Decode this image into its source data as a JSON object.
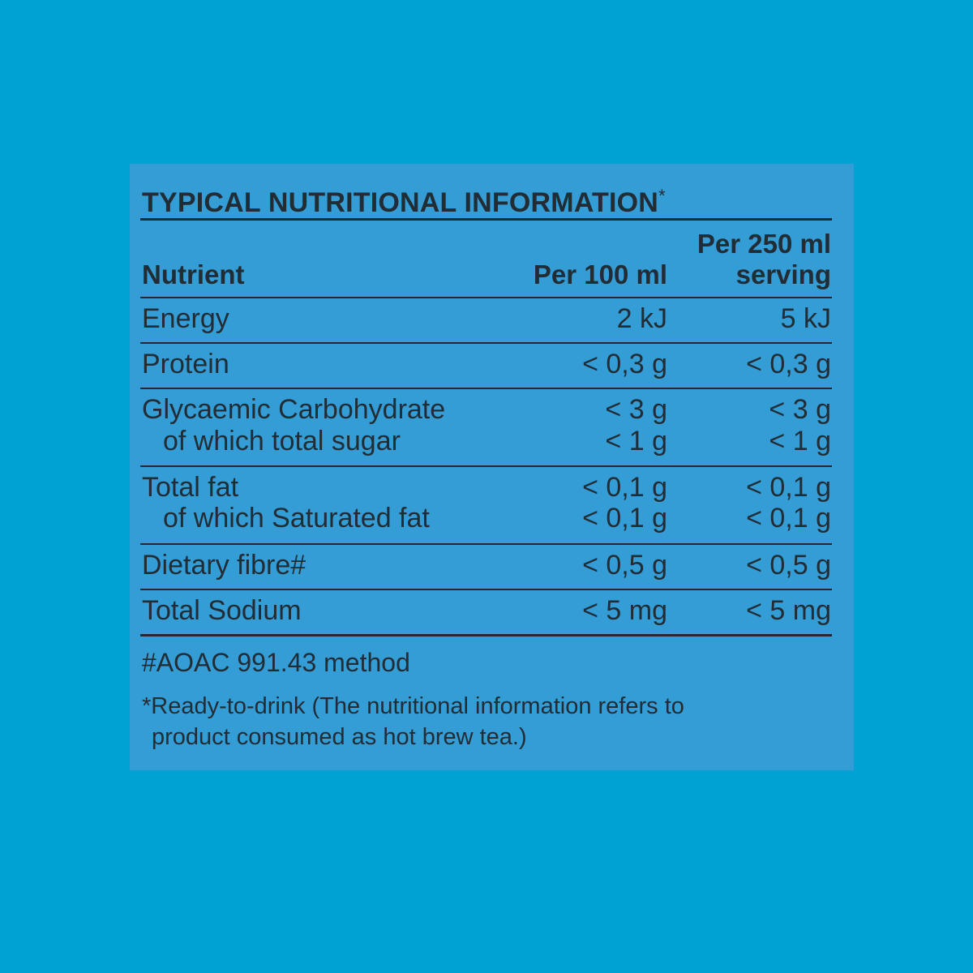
{
  "panel": {
    "title": "TYPICAL NUTRITIONAL INFORMATION",
    "title_mark": "*",
    "headers": {
      "nutrient": "Nutrient",
      "per100": "Per 100 ml",
      "per250_line1": "Per 250 ml",
      "per250_line2": "serving"
    },
    "rows": [
      {
        "name": "Energy",
        "per100": "2 kJ",
        "per250": "5 kJ"
      },
      {
        "name": "Protein",
        "per100": "< 0,3 g",
        "per250": "< 0,3 g"
      },
      {
        "name": "Glycaemic Carbohydrate",
        "per100": "< 3 g",
        "per250": "< 3 g"
      },
      {
        "name": "of which total sugar",
        "per100": "< 1 g",
        "per250": "< 1 g"
      },
      {
        "name": "Total fat",
        "per100": "< 0,1 g",
        "per250": "< 0,1 g"
      },
      {
        "name": "of which Saturated fat",
        "per100": "< 0,1 g",
        "per250": "< 0,1 g"
      },
      {
        "name": "Dietary fibre#",
        "per100": "< 0,5 g",
        "per250": "< 0,5 g"
      },
      {
        "name": "Total Sodium",
        "per100": "< 5 mg",
        "per250": "< 5 mg"
      }
    ],
    "footnote_method": "#AOAC 991.43 method",
    "footnote_ready_line1": "*Ready-to-drink (The nutritional information refers to",
    "footnote_ready_line2": "product consumed as hot brew tea.)"
  },
  "colors": {
    "background": "#00a1d3",
    "panel": "#349dd5",
    "text": "#222c35"
  }
}
